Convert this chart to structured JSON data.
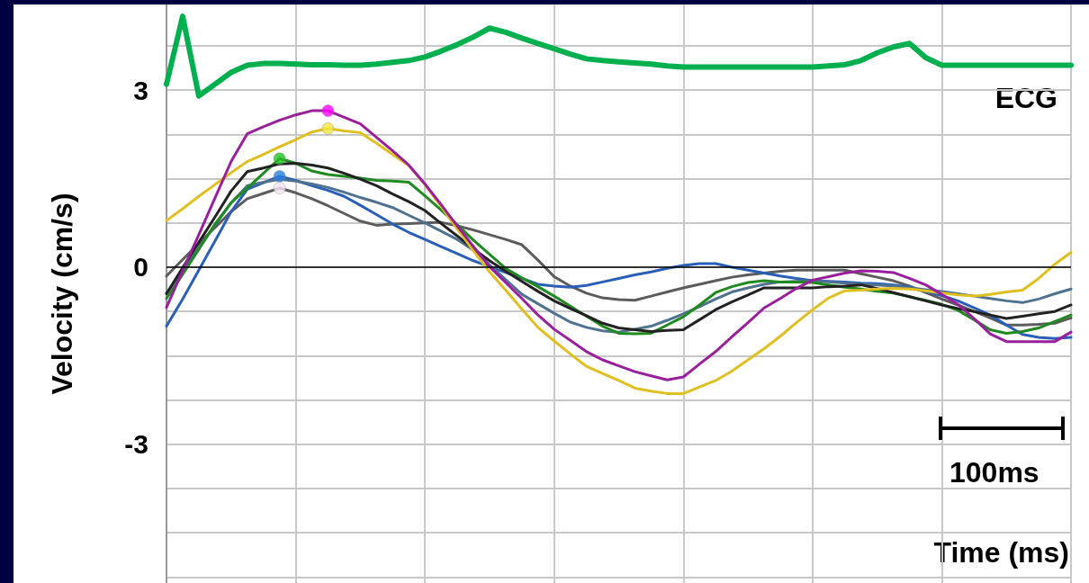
{
  "chart_data": {
    "type": "line",
    "xlabel": "Time (ms)",
    "ylabel": "Velocity (cm/s)",
    "annotations": [
      "100ms"
    ],
    "categories": [
      null,
      null,
      null,
      null,
      null,
      null,
      null,
      null,
      null,
      null,
      null,
      null,
      null,
      null,
      null,
      null,
      null,
      null,
      null,
      null,
      null,
      null,
      null,
      null,
      null,
      null,
      null,
      null,
      null,
      null,
      null,
      null,
      null,
      null,
      null,
      null,
      null,
      null,
      null,
      null,
      null,
      null,
      null,
      null,
      null,
      null,
      null,
      null,
      null,
      null,
      null,
      null,
      null,
      null,
      null,
      null,
      null
    ],
    "ylim": [
      -5.35,
      4.45
    ],
    "yticks": [
      {
        "value": -5.25,
        "label": null
      },
      {
        "value": -4.5,
        "label": null
      },
      {
        "value": -3.75,
        "label": null
      },
      -3,
      {
        "value": -2.25,
        "label": null
      },
      {
        "value": -1.5,
        "label": null
      },
      {
        "value": -0.75,
        "label": null
      },
      0,
      {
        "value": 0.75,
        "label": null
      },
      {
        "value": 1.5,
        "label": null
      },
      {
        "value": 2.25,
        "label": null
      },
      3,
      {
        "value": 3.75,
        "label": null
      }
    ],
    "tick_labels": "y",
    "grid": true,
    "legend": false,
    "marker": "none",
    "ref_lines": [
      {
        "axis": "y",
        "value": 0,
        "color": "#000000"
      }
    ],
    "series": [
      {
        "name": "ECG",
        "color": "#00b04f",
        "values": [
          3.1,
          4.25,
          2.9,
          3.1,
          3.3,
          3.42,
          3.45,
          3.45,
          3.44,
          3.43,
          3.43,
          3.42,
          3.42,
          3.44,
          3.47,
          3.5,
          3.56,
          3.66,
          3.77,
          3.9,
          4.05,
          3.98,
          3.88,
          3.79,
          3.7,
          3.61,
          3.53,
          3.5,
          3.48,
          3.46,
          3.44,
          3.41,
          3.39,
          3.39,
          3.39,
          3.39,
          3.39,
          3.39,
          3.39,
          3.39,
          3.39,
          3.41,
          3.43,
          3.5,
          3.63,
          3.73,
          3.79,
          3.55,
          3.42,
          3.42,
          3.42,
          3.42,
          3.42,
          3.42,
          3.42,
          3.42,
          3.42
        ]
      },
      {
        "color": "#5c5c5c",
        "values": [
          -0.15,
          0.13,
          0.4,
          0.67,
          0.94,
          1.16,
          1.25,
          1.34,
          1.26,
          1.16,
          1.04,
          0.91,
          0.78,
          0.71,
          0.73,
          0.74,
          0.75,
          0.76,
          0.7,
          0.63,
          0.55,
          0.47,
          0.38,
          0.12,
          -0.16,
          -0.32,
          -0.44,
          -0.52,
          -0.55,
          -0.56,
          -0.49,
          -0.42,
          -0.35,
          -0.29,
          -0.23,
          -0.17,
          -0.13,
          -0.1,
          -0.07,
          -0.05,
          -0.05,
          -0.05,
          -0.05,
          -0.11,
          -0.17,
          -0.23,
          -0.32,
          -0.43,
          -0.54,
          -0.64,
          -0.75,
          -0.86,
          -0.98,
          -0.98,
          -0.97,
          -0.95,
          -0.86
        ]
      },
      {
        "color": "#2a5fb8",
        "values": [
          -1.0,
          -0.54,
          -0.05,
          0.44,
          0.94,
          1.32,
          1.43,
          1.54,
          1.47,
          1.38,
          1.3,
          1.2,
          1.05,
          0.89,
          0.73,
          0.59,
          0.47,
          0.35,
          0.23,
          0.11,
          0.01,
          -0.09,
          -0.19,
          -0.29,
          -0.32,
          -0.34,
          -0.31,
          -0.25,
          -0.19,
          -0.13,
          -0.08,
          -0.02,
          0.03,
          0.06,
          0.06,
          0,
          -0.05,
          -0.1,
          -0.15,
          -0.19,
          -0.23,
          -0.24,
          -0.25,
          -0.27,
          -0.28,
          -0.3,
          -0.34,
          -0.41,
          -0.48,
          -0.57,
          -0.69,
          -0.81,
          -0.98,
          -1.14,
          -1.19,
          -1.21,
          -1.19
        ]
      },
      {
        "color": "#4e7290",
        "values": [
          -0.44,
          -0.06,
          0.33,
          0.71,
          1.09,
          1.38,
          1.44,
          1.49,
          1.46,
          1.41,
          1.35,
          1.27,
          1.18,
          1.1,
          1.01,
          0.88,
          0.75,
          0.61,
          0.47,
          0.29,
          0.04,
          -0.21,
          -0.46,
          -0.62,
          -0.78,
          -0.93,
          -1.02,
          -1.08,
          -1.1,
          -1.05,
          -1.0,
          -0.9,
          -0.79,
          -0.67,
          -0.54,
          -0.42,
          -0.35,
          -0.29,
          -0.25,
          -0.24,
          -0.23,
          -0.25,
          -0.27,
          -0.29,
          -0.3,
          -0.32,
          -0.35,
          -0.38,
          -0.41,
          -0.45,
          -0.49,
          -0.53,
          -0.57,
          -0.6,
          -0.54,
          -0.45,
          -0.37
        ]
      },
      {
        "color": "#1f8a1f",
        "values": [
          -0.53,
          -0.12,
          0.3,
          0.73,
          1.09,
          1.34,
          1.59,
          1.84,
          1.76,
          1.63,
          1.57,
          1.54,
          1.51,
          1.47,
          1.46,
          1.44,
          1.21,
          0.97,
          0.72,
          0.46,
          0.22,
          -0.02,
          -0.18,
          -0.33,
          -0.49,
          -0.66,
          -0.83,
          -1.0,
          -1.12,
          -1.13,
          -1.12,
          -0.98,
          -0.84,
          -0.64,
          -0.43,
          -0.33,
          -0.26,
          -0.23,
          -0.25,
          -0.25,
          -0.26,
          -0.3,
          -0.34,
          -0.37,
          -0.41,
          -0.44,
          -0.5,
          -0.56,
          -0.63,
          -0.73,
          -0.89,
          -1.06,
          -1.12,
          -1.09,
          -1.03,
          -0.92,
          -0.81
        ]
      },
      {
        "color": "#222222",
        "values": [
          -0.45,
          -0.01,
          0.42,
          0.85,
          1.29,
          1.62,
          1.68,
          1.75,
          1.76,
          1.73,
          1.68,
          1.59,
          1.49,
          1.38,
          1.24,
          1.11,
          0.96,
          0.74,
          0.53,
          0.31,
          0.11,
          -0.07,
          -0.24,
          -0.41,
          -0.57,
          -0.7,
          -0.82,
          -0.95,
          -1.03,
          -1.06,
          -1.09,
          -1.07,
          -1.06,
          -0.89,
          -0.72,
          -0.59,
          -0.47,
          -0.35,
          -0.35,
          -0.35,
          -0.35,
          -0.33,
          -0.32,
          -0.3,
          -0.36,
          -0.43,
          -0.5,
          -0.57,
          -0.64,
          -0.7,
          -0.75,
          -0.81,
          -0.87,
          -0.83,
          -0.79,
          -0.75,
          -0.64
        ]
      },
      {
        "color": "#e0c020",
        "values": [
          0.79,
          0.99,
          1.2,
          1.4,
          1.6,
          1.79,
          1.91,
          2.04,
          2.16,
          2.29,
          2.35,
          2.31,
          2.28,
          2.1,
          1.91,
          1.72,
          1.4,
          1.03,
          0.65,
          0.28,
          -0.08,
          -0.39,
          -0.71,
          -1.02,
          -1.25,
          -1.47,
          -1.68,
          -1.8,
          -1.92,
          -2.05,
          -2.1,
          -2.14,
          -2.14,
          -2.03,
          -1.92,
          -1.76,
          -1.57,
          -1.38,
          -1.17,
          -0.94,
          -0.72,
          -0.52,
          -0.4,
          -0.39,
          -0.37,
          -0.36,
          -0.37,
          -0.4,
          -0.44,
          -0.47,
          -0.49,
          -0.46,
          -0.42,
          -0.39,
          -0.19,
          0.05,
          0.25
        ]
      },
      {
        "color": "#9a1f9c",
        "values": [
          -0.68,
          -0.06,
          0.55,
          1.17,
          1.79,
          2.26,
          2.38,
          2.49,
          2.58,
          2.65,
          2.65,
          2.54,
          2.43,
          2.2,
          1.97,
          1.73,
          1.41,
          1.06,
          0.7,
          0.35,
          0.01,
          -0.26,
          -0.53,
          -0.81,
          -1.05,
          -1.24,
          -1.43,
          -1.57,
          -1.67,
          -1.77,
          -1.84,
          -1.91,
          -1.86,
          -1.64,
          -1.43,
          -1.18,
          -0.94,
          -0.69,
          -0.53,
          -0.36,
          -0.22,
          -0.16,
          -0.1,
          -0.06,
          -0.07,
          -0.09,
          -0.19,
          -0.3,
          -0.46,
          -0.63,
          -0.87,
          -1.13,
          -1.26,
          -1.26,
          -1.26,
          -1.26,
          -1.1
        ]
      },
      {
        "type": "scatter",
        "marker": "circle",
        "color": "#ff00ff",
        "values": [
          null,
          null,
          null,
          null,
          null,
          null,
          null,
          null,
          null,
          null,
          2.65,
          null,
          null,
          null,
          null,
          null,
          null,
          null,
          null,
          null,
          null,
          null,
          null,
          null,
          null,
          null,
          null,
          null,
          null,
          null,
          null,
          null,
          null,
          null,
          null,
          null,
          null,
          null,
          null,
          null,
          null,
          null,
          null,
          null,
          null,
          null,
          null,
          null,
          null,
          null,
          null,
          null,
          null,
          null,
          null,
          null,
          null
        ]
      },
      {
        "type": "scatter",
        "marker": "circle",
        "color": "#f2e640",
        "values": [
          null,
          null,
          null,
          null,
          null,
          null,
          null,
          null,
          null,
          null,
          2.35,
          null,
          null,
          null,
          null,
          null,
          null,
          null,
          null,
          null,
          null,
          null,
          null,
          null,
          null,
          null,
          null,
          null,
          null,
          null,
          null,
          null,
          null,
          null,
          null,
          null,
          null,
          null,
          null,
          null,
          null,
          null,
          null,
          null,
          null,
          null,
          null,
          null,
          null,
          null,
          null,
          null,
          null,
          null,
          null,
          null,
          null
        ]
      },
      {
        "type": "scatter",
        "marker": "circle",
        "color": "#22c022",
        "values": [
          null,
          null,
          null,
          null,
          null,
          null,
          null,
          1.84,
          null,
          null,
          null,
          null,
          null,
          null,
          null,
          null,
          null,
          null,
          null,
          null,
          null,
          null,
          null,
          null,
          null,
          null,
          null,
          null,
          null,
          null,
          null,
          null,
          null,
          null,
          null,
          null,
          null,
          null,
          null,
          null,
          null,
          null,
          null,
          null,
          null,
          null,
          null,
          null,
          null,
          null,
          null,
          null,
          null,
          null,
          null,
          null,
          null
        ]
      },
      {
        "type": "scatter",
        "marker": "circle",
        "color": "#2a7fe0",
        "values": [
          null,
          null,
          null,
          null,
          null,
          null,
          null,
          1.54,
          null,
          null,
          null,
          null,
          null,
          null,
          null,
          null,
          null,
          null,
          null,
          null,
          null,
          null,
          null,
          null,
          null,
          null,
          null,
          null,
          null,
          null,
          null,
          null,
          null,
          null,
          null,
          null,
          null,
          null,
          null,
          null,
          null,
          null,
          null,
          null,
          null,
          null,
          null,
          null,
          null,
          null,
          null,
          null,
          null,
          null,
          null,
          null,
          null
        ]
      },
      {
        "type": "scatter",
        "marker": "circle",
        "color": "#f8e6f4",
        "values": [
          null,
          null,
          null,
          null,
          null,
          null,
          null,
          1.34,
          null,
          null,
          null,
          null,
          null,
          null,
          null,
          null,
          null,
          null,
          null,
          null,
          null,
          null,
          null,
          null,
          null,
          null,
          null,
          null,
          null,
          null,
          null,
          null,
          null,
          null,
          null,
          null,
          null,
          null,
          null,
          null,
          null,
          null,
          null,
          null,
          null,
          null,
          null,
          null,
          null,
          null,
          null,
          null,
          null,
          null,
          null,
          null,
          null
        ]
      }
    ]
  }
}
